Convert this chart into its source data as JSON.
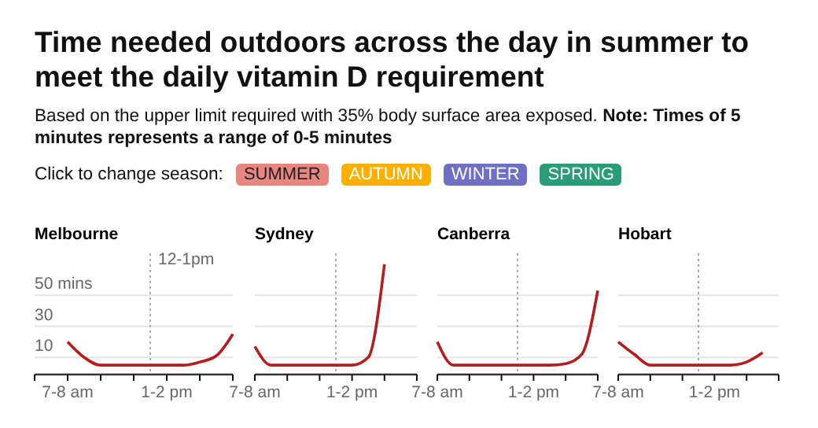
{
  "chart_data": [
    {
      "type": "other",
      "title": "Time needed outdoors across the day in summer to meet the daily vitamin D requirement",
      "subtitle": "Based on the upper limit required with 35% body surface area exposed.",
      "annotations": [
        "Note: Times of 5 minutes represents a range of 0-5 minutes",
        "Click to change season:",
        "SUMMER",
        "AUTUMN",
        "WINTER",
        "SPRING"
      ],
      "colors": [
        null,
        null,
        "#e8857f",
        "#fbb000",
        "#6f6fc3",
        "#2a9d76"
      ]
    },
    {
      "type": "line",
      "title": "Melbourne",
      "categories": [
        null,
        null,
        "7-8 am",
        null,
        null,
        null,
        null,
        null,
        "1-2 pm",
        null,
        null,
        null,
        null
      ],
      "ylim": [
        0,
        75
      ],
      "yticks": [
        10,
        30,
        {
          "value": 50,
          "label": "50 mins"
        }
      ],
      "grid": "y",
      "annotations": [
        "12-1pm"
      ],
      "series": [
        {
          "color": "#b71c1c",
          "values": [
            null,
            null,
            20,
            10,
            5,
            5,
            5,
            5,
            5,
            5,
            7,
            11,
            25
          ]
        }
      ]
    },
    {
      "type": "line",
      "title": "Sydney",
      "categories": [
        "7-8 am",
        null,
        null,
        null,
        null,
        null,
        "1-2 pm",
        null,
        null,
        null,
        null
      ],
      "ylim": [
        0,
        75
      ],
      "yticks": [
        10,
        30,
        50
      ],
      "tick_labels": "x",
      "grid": "y",
      "series": [
        {
          "color": "#b71c1c",
          "values": [
            17,
            5,
            5,
            5,
            5,
            5,
            5,
            10,
            70,
            null,
            null
          ]
        }
      ]
    },
    {
      "type": "line",
      "title": "Canberra",
      "categories": [
        "7-8 am",
        null,
        null,
        null,
        null,
        null,
        "1-2 pm",
        null,
        null,
        null,
        null
      ],
      "ylim": [
        0,
        75
      ],
      "yticks": [
        10,
        30,
        50
      ],
      "tick_labels": "x",
      "grid": "y",
      "series": [
        {
          "color": "#b71c1c",
          "values": [
            20,
            5,
            5,
            5,
            5,
            5,
            5,
            5,
            6,
            12,
            53
          ]
        }
      ]
    },
    {
      "type": "line",
      "title": "Hobart",
      "categories": [
        "7-8 am",
        null,
        null,
        null,
        null,
        null,
        "1-2 pm",
        null,
        null,
        null,
        null
      ],
      "ylim": [
        0,
        75
      ],
      "yticks": [
        10,
        30,
        50
      ],
      "tick_labels": "x",
      "grid": "y",
      "series": [
        {
          "color": "#b71c1c",
          "values": [
            20,
            12,
            5,
            5,
            5,
            5,
            5,
            5,
            7,
            13,
            null
          ]
        }
      ]
    }
  ]
}
